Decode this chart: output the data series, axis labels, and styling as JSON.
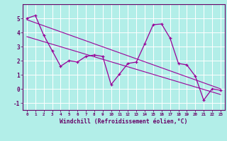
{
  "x": [
    0,
    1,
    2,
    3,
    4,
    5,
    6,
    7,
    8,
    9,
    10,
    11,
    12,
    13,
    14,
    15,
    16,
    17,
    18,
    19,
    20,
    21,
    22,
    23
  ],
  "y_main": [
    5.0,
    5.2,
    3.8,
    2.7,
    1.6,
    2.0,
    1.9,
    2.3,
    2.4,
    2.3,
    0.3,
    1.05,
    1.8,
    1.9,
    3.2,
    4.55,
    4.6,
    3.6,
    1.8,
    1.7,
    0.9,
    -0.8,
    0.0,
    -0.1
  ],
  "trend1_x": [
    0,
    23
  ],
  "trend1_y": [
    4.9,
    0.0
  ],
  "trend2_x": [
    0,
    23
  ],
  "trend2_y": [
    3.7,
    -0.4
  ],
  "line_color": "#990099",
  "bg_color": "#b2eee8",
  "grid_color": "#ffffff",
  "xlabel": "Windchill (Refroidissement éolien,°C)",
  "xlim": [
    -0.5,
    23.5
  ],
  "ylim": [
    -1.5,
    6.0
  ],
  "yticks": [
    -1,
    0,
    1,
    2,
    3,
    4,
    5
  ],
  "xticks": [
    0,
    1,
    2,
    3,
    4,
    5,
    6,
    7,
    8,
    9,
    10,
    11,
    12,
    13,
    14,
    15,
    16,
    17,
    18,
    19,
    20,
    21,
    22,
    23
  ]
}
